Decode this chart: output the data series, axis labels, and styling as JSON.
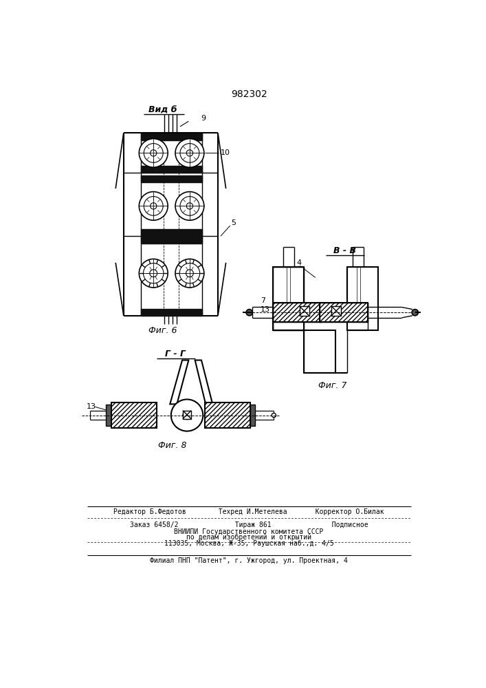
{
  "patent_number": "982302",
  "bg": "#ffffff",
  "lc": "#000000",
  "view_b_label": "Вид б",
  "bb_label": "В - В",
  "gg_label": "Г - Г",
  "fig6_label": "Фиг. 6",
  "fig7_label": "Фиг. 7",
  "fig8_label": "Фиг. 8",
  "label_9": "9",
  "label_10": "10",
  "label_5": "5",
  "label_4": "4",
  "label_7": "7",
  "label_13": "13",
  "editor_line": "Редактор Б.Федотов        Техред И.Метелева       Корректор О.Билак",
  "order_line": "Заказ 6458/2              Тираж 861               Подписное",
  "vniip1": "ВНИИПИ Государственного комитета СССР",
  "vniip2": "по делам изобретений и открытий",
  "vniip3": "113035, Москва, Ж-35, Раушская наб.,д. 4/5",
  "filial": "Филиал ПНП \"Патент\", г. Ужгород, ул. Проектная, 4"
}
